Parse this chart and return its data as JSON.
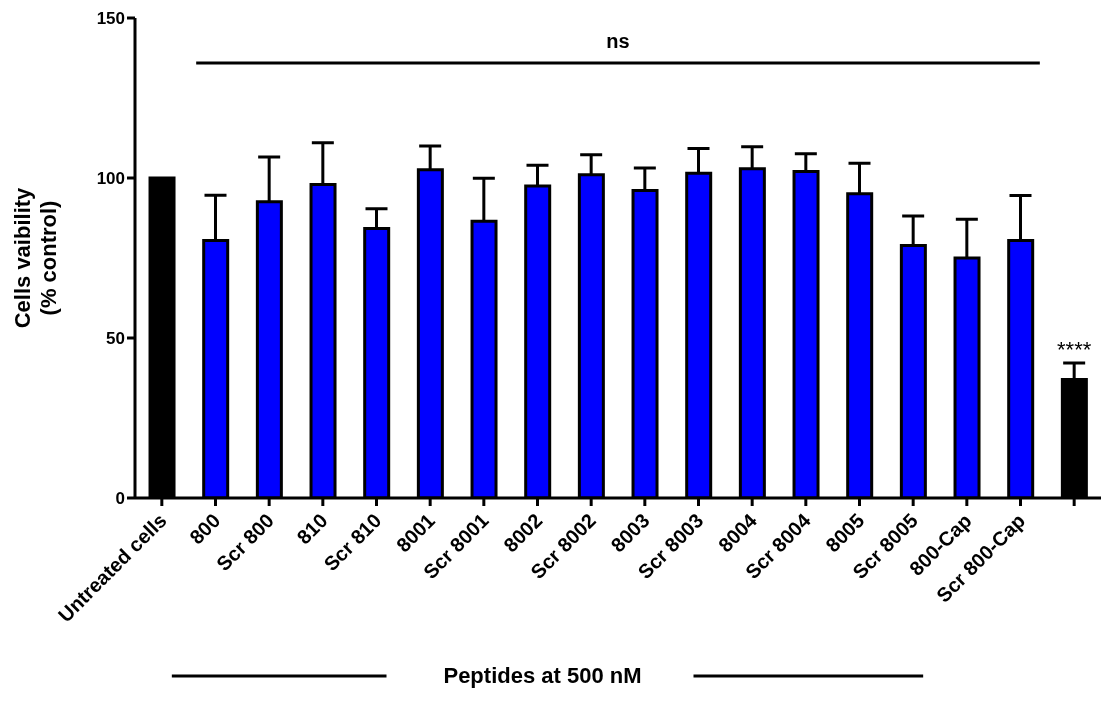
{
  "chart_data": {
    "type": "bar",
    "ylabel": "Cells vaibility\n(% control)",
    "xlabel": "Peptides at 500 nM",
    "categories": [
      "Untreated cells",
      "800",
      "Scr 800",
      "810",
      "Scr 810",
      "8001",
      "Scr 8001",
      "8002",
      "Scr 8002",
      "8003",
      "Scr 8003",
      "8004",
      "Scr 8004",
      "8005",
      "Scr 8005",
      "800-Cap",
      "Scr 800-Cap",
      null
    ],
    "values": [
      100,
      80.5,
      92.6,
      98,
      84.2,
      102.6,
      86.5,
      97.5,
      101,
      96.1,
      101.5,
      102.9,
      102,
      95.1,
      78.9,
      75,
      80.5,
      37
    ],
    "errors": [
      null,
      [
        80.5,
        94.6
      ],
      [
        92.6,
        106.6
      ],
      [
        98,
        111
      ],
      [
        84.2,
        90.4
      ],
      [
        102.6,
        110
      ],
      [
        86.5,
        99.9
      ],
      [
        97.5,
        104
      ],
      [
        101,
        107.3
      ],
      [
        96.1,
        103.1
      ],
      [
        101.5,
        109.2
      ],
      [
        102.9,
        109.8
      ],
      [
        102,
        107.6
      ],
      [
        95.1,
        104.6
      ],
      [
        78.9,
        88.1
      ],
      [
        75,
        87.1
      ],
      [
        80.5,
        94.5
      ],
      [
        37,
        42.2
      ]
    ],
    "colors": [
      "#000000",
      "#0000ff",
      "#0000ff",
      "#0000ff",
      "#0000ff",
      "#0000ff",
      "#0000ff",
      "#0000ff",
      "#0000ff",
      "#0000ff",
      "#0000ff",
      "#0000ff",
      "#0000ff",
      "#0000ff",
      "#0000ff",
      "#0000ff",
      "#0000ff",
      "#000000"
    ],
    "ylim": [
      0,
      150
    ],
    "yticks": [
      0,
      50,
      100,
      150
    ],
    "annotations": [
      "ns",
      "****"
    ],
    "grid": false,
    "legend": false
  }
}
